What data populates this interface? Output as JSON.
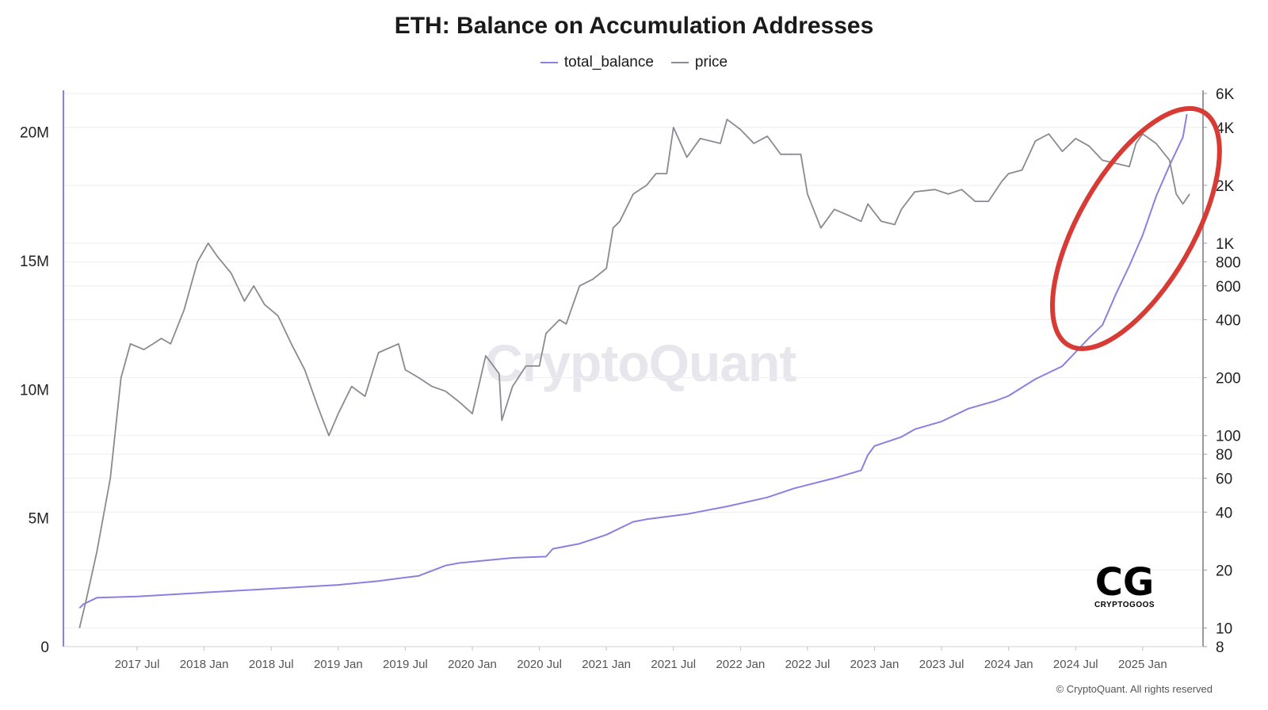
{
  "chart_data": {
    "type": "line",
    "title": "ETH: Balance on Accumulation Addresses",
    "legend": {
      "placement": "top-center",
      "entries": [
        "total_balance",
        "price"
      ]
    },
    "colors": {
      "total_balance": "#8b7fe0",
      "price": "#8a8a92",
      "annotation": "#d83a34"
    },
    "x_tick_labels": [
      "2017 Jul",
      "2018 Jan",
      "2018 Jul",
      "2019 Jan",
      "2019 Jul",
      "2020 Jan",
      "2020 Jul",
      "2021 Jan",
      "2021 Jul",
      "2022 Jan",
      "2022 Jul",
      "2023 Jan",
      "2023 Jul",
      "2024 Jan",
      "2024 Jul",
      "2025 Jan"
    ],
    "x_tick_values": [
      2017.5,
      2018.0,
      2018.5,
      2019.0,
      2019.5,
      2020.0,
      2020.5,
      2021.0,
      2021.5,
      2022.0,
      2022.5,
      2023.0,
      2023.5,
      2024.0,
      2024.5,
      2025.0
    ],
    "xlim": [
      2016.95,
      2025.45
    ],
    "y_left": {
      "ylim": [
        0,
        21500000
      ],
      "tick_labels": [
        "0",
        "5M",
        "10M",
        "15M",
        "20M"
      ],
      "tick_values": [
        0,
        5000000,
        10000000,
        15000000,
        20000000
      ]
    },
    "y_right": {
      "scale": "log",
      "ylim": [
        8,
        6000
      ],
      "tick_labels": [
        "6K",
        "4K",
        "2K",
        "1K",
        "800",
        "600",
        "400",
        "200",
        "100",
        "80",
        "60",
        "40",
        "20",
        "10",
        "8"
      ],
      "tick_values": [
        6000,
        4000,
        2000,
        1000,
        800,
        600,
        400,
        200,
        100,
        80,
        60,
        40,
        20,
        10,
        8
      ]
    },
    "grid": true,
    "series": [
      {
        "name": "total_balance",
        "axis": "left",
        "x": [
          2017.07,
          2017.1,
          2017.2,
          2017.5,
          2018.0,
          2018.5,
          2019.0,
          2019.3,
          2019.6,
          2019.8,
          2019.9,
          2020.0,
          2020.3,
          2020.55,
          2020.6,
          2020.8,
          2021.0,
          2021.2,
          2021.3,
          2021.6,
          2021.9,
          2022.2,
          2022.4,
          2022.7,
          2022.9,
          2022.95,
          2023.0,
          2023.2,
          2023.3,
          2023.5,
          2023.7,
          2023.9,
          2024.0,
          2024.2,
          2024.4,
          2024.5,
          2024.6,
          2024.7,
          2024.8,
          2024.9,
          2025.0,
          2025.1,
          2025.2,
          2025.3,
          2025.33
        ],
        "y": [
          1500000,
          1650000,
          1900000,
          1950000,
          2100000,
          2250000,
          2400000,
          2550000,
          2750000,
          3150000,
          3250000,
          3300000,
          3450000,
          3500000,
          3800000,
          4000000,
          4350000,
          4850000,
          4950000,
          5150000,
          5450000,
          5800000,
          6150000,
          6550000,
          6850000,
          7450000,
          7800000,
          8150000,
          8450000,
          8750000,
          9250000,
          9550000,
          9750000,
          10400000,
          10900000,
          11450000,
          12000000,
          12500000,
          13700000,
          14800000,
          16000000,
          17500000,
          18700000,
          19800000,
          20700000
        ]
      },
      {
        "name": "price",
        "axis": "right",
        "x": [
          2017.07,
          2017.12,
          2017.2,
          2017.3,
          2017.38,
          2017.45,
          2017.55,
          2017.62,
          2017.68,
          2017.75,
          2017.85,
          2017.95,
          2018.03,
          2018.1,
          2018.2,
          2018.3,
          2018.37,
          2018.45,
          2018.55,
          2018.65,
          2018.75,
          2018.85,
          2018.93,
          2019.0,
          2019.1,
          2019.2,
          2019.3,
          2019.45,
          2019.5,
          2019.6,
          2019.7,
          2019.8,
          2019.9,
          2020.0,
          2020.1,
          2020.2,
          2020.22,
          2020.3,
          2020.4,
          2020.5,
          2020.55,
          2020.65,
          2020.7,
          2020.8,
          2020.9,
          2021.0,
          2021.05,
          2021.1,
          2021.2,
          2021.3,
          2021.37,
          2021.45,
          2021.5,
          2021.6,
          2021.7,
          2021.85,
          2021.9,
          2022.0,
          2022.1,
          2022.2,
          2022.3,
          2022.37,
          2022.45,
          2022.5,
          2022.6,
          2022.7,
          2022.8,
          2022.9,
          2022.95,
          2023.05,
          2023.15,
          2023.2,
          2023.3,
          2023.45,
          2023.55,
          2023.65,
          2023.75,
          2023.85,
          2023.95,
          2024.0,
          2024.1,
          2024.2,
          2024.3,
          2024.4,
          2024.5,
          2024.6,
          2024.7,
          2024.8,
          2024.9,
          2024.95,
          2025.0,
          2025.1,
          2025.2,
          2025.25,
          2025.3,
          2025.35
        ],
        "y": [
          10,
          14,
          25,
          60,
          200,
          300,
          280,
          300,
          320,
          300,
          450,
          800,
          1000,
          850,
          700,
          500,
          600,
          480,
          420,
          300,
          220,
          140,
          100,
          130,
          180,
          160,
          270,
          300,
          220,
          200,
          180,
          170,
          150,
          130,
          260,
          210,
          120,
          180,
          230,
          230,
          340,
          400,
          380,
          600,
          650,
          740,
          1200,
          1300,
          1800,
          2000,
          2300,
          2300,
          4000,
          2800,
          3500,
          3300,
          4400,
          3900,
          3300,
          3600,
          2900,
          2900,
          2900,
          1800,
          1200,
          1500,
          1400,
          1300,
          1600,
          1300,
          1250,
          1500,
          1850,
          1900,
          1800,
          1900,
          1650,
          1650,
          2100,
          2300,
          2400,
          3400,
          3700,
          3000,
          3500,
          3200,
          2700,
          2600,
          2500,
          3300,
          3700,
          3300,
          2700,
          1800,
          1600,
          1800
        ]
      }
    ],
    "annotations": [
      {
        "type": "ellipse",
        "label": ""
      }
    ],
    "watermark": "CryptoQuant",
    "logo_text": "CRYPTOGOOS",
    "logo_mark": "CG",
    "copyright": "© CryptoQuant. All rights reserved"
  }
}
